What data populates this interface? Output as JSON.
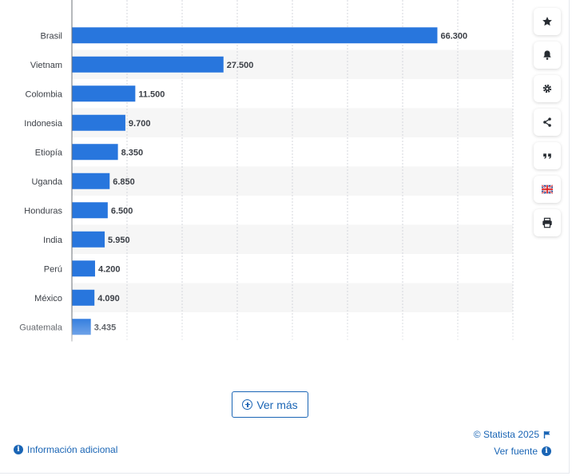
{
  "chart_data": {
    "type": "bar",
    "orientation": "horizontal",
    "categories": [
      "Brasil",
      "Vietnam",
      "Colombia",
      "Indonesia",
      "Etiopía",
      "Uganda",
      "Honduras",
      "India",
      "Perú",
      "México",
      "Guatemala"
    ],
    "values": [
      66300,
      27500,
      11500,
      9700,
      8350,
      6850,
      6500,
      5950,
      4200,
      4090,
      3435
    ],
    "value_labels": [
      "66.300",
      "27.500",
      "11.500",
      "9.700",
      "8.350",
      "6.850",
      "6.500",
      "5.950",
      "4.200",
      "4.090",
      "3.435"
    ],
    "xlim": [
      0,
      80000
    ],
    "grid": true,
    "legend": "none",
    "bar_color": "#2876dd",
    "stripe_color": "#f6f6f6"
  },
  "toolbar": {
    "icons": [
      "star-icon",
      "bell-icon",
      "gear-icon",
      "share-icon",
      "quote-icon",
      "uk-flag-icon",
      "print-icon"
    ]
  },
  "more_button": {
    "label": "Ver más"
  },
  "footer": {
    "info_label": "Información adicional",
    "copyright": "© Statista 2025",
    "source_label": "Ver fuente"
  },
  "colors": {
    "accent": "#1a65b5",
    "bar": "#2876dd"
  }
}
